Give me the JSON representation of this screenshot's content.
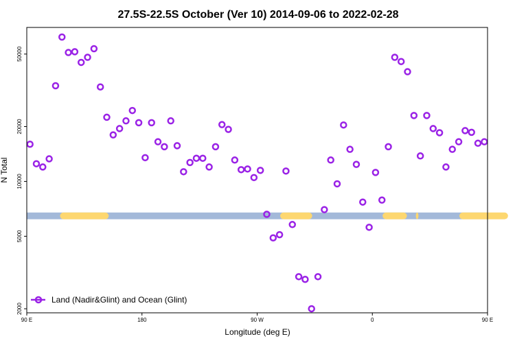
{
  "chart_data": {
    "type": "scatter",
    "title": "27.5S-22.5S October (Ver 10)   2014-09-06 to 2022-02-28",
    "xlabel": "Longitude (deg E)",
    "ylabel": "N Total",
    "xlim": [
      90,
      450
    ],
    "ylim": [
      1900,
      70000
    ],
    "y_scale": "log",
    "grid": false,
    "legend_position": "bottom-left",
    "x_ticks": [
      {
        "value": 90,
        "label": "90 E"
      },
      {
        "value": 180,
        "label": "180"
      },
      {
        "value": 270,
        "label": "90 W"
      },
      {
        "value": 360,
        "label": "0"
      },
      {
        "value": 450,
        "label": "90 E"
      },
      {
        "value": 540,
        "label": "180"
      }
    ],
    "y_ticks": [
      {
        "value": 2000,
        "label": "2000"
      },
      {
        "value": 5000,
        "label": "5000"
      },
      {
        "value": 10000,
        "label": "10000"
      },
      {
        "value": 20000,
        "label": "20000"
      },
      {
        "value": 50000,
        "label": "50000"
      }
    ],
    "surface_band": {
      "y_range": [
        6200,
        6750
      ],
      "ocean_color": "#a3b9d9",
      "land_color": "#fdd770",
      "land_segments": [
        [
          116,
          154
        ],
        [
          288,
          313
        ],
        [
          368,
          387
        ],
        [
          394,
          396
        ],
        [
          428,
          466
        ]
      ]
    },
    "series": [
      {
        "name": "Land (Nadir&Glint) and Ocean (Glint)",
        "color": "#9a22e6",
        "x": [
          92.5,
          97.5,
          102.5,
          107.5,
          112.5,
          117.5,
          122.5,
          127.5,
          132.5,
          137.5,
          142.5,
          147.5,
          152.5,
          157.5,
          162.5,
          167.5,
          172.5,
          177.5,
          182.5,
          187.5,
          192.5,
          197.5,
          202.5,
          207.5,
          212.5,
          217.5,
          222.5,
          227.5,
          232.5,
          237.5,
          242.5,
          247.5,
          252.5,
          257.5,
          262.5,
          267.5,
          272.5,
          277.5,
          282.5,
          287.5,
          292.5,
          297.5,
          302.5,
          307.5,
          312.5,
          317.5,
          322.5,
          327.5,
          332.5,
          337.5,
          342.5,
          347.5,
          352.5,
          357.5,
          362.5,
          367.5,
          372.5,
          377.5,
          382.5,
          387.5,
          392.5,
          397.5,
          402.5,
          407.5,
          412.5,
          417.5,
          422.5,
          427.5,
          432.5,
          437.5,
          442.5,
          447.5
        ],
        "y": [
          16000,
          12500,
          12000,
          13300,
          33500,
          62000,
          51000,
          51500,
          45000,
          48000,
          53500,
          33000,
          22500,
          18000,
          19500,
          21500,
          24500,
          21000,
          13500,
          21000,
          16500,
          15500,
          21500,
          15700,
          11300,
          12700,
          13400,
          13400,
          12000,
          15500,
          20500,
          19300,
          13100,
          11600,
          11700,
          10500,
          11500,
          6600,
          4900,
          5100,
          11400,
          5800,
          3000,
          2900,
          2000,
          3000,
          7000,
          13100,
          9700,
          20400,
          15000,
          12400,
          7700,
          5600,
          11200,
          7900,
          15500,
          48000,
          45500,
          40000,
          23000,
          13800,
          23000,
          19500,
          18500,
          12000,
          15000,
          16500,
          19000,
          18600,
          16200,
          16500
        ]
      }
    ]
  }
}
